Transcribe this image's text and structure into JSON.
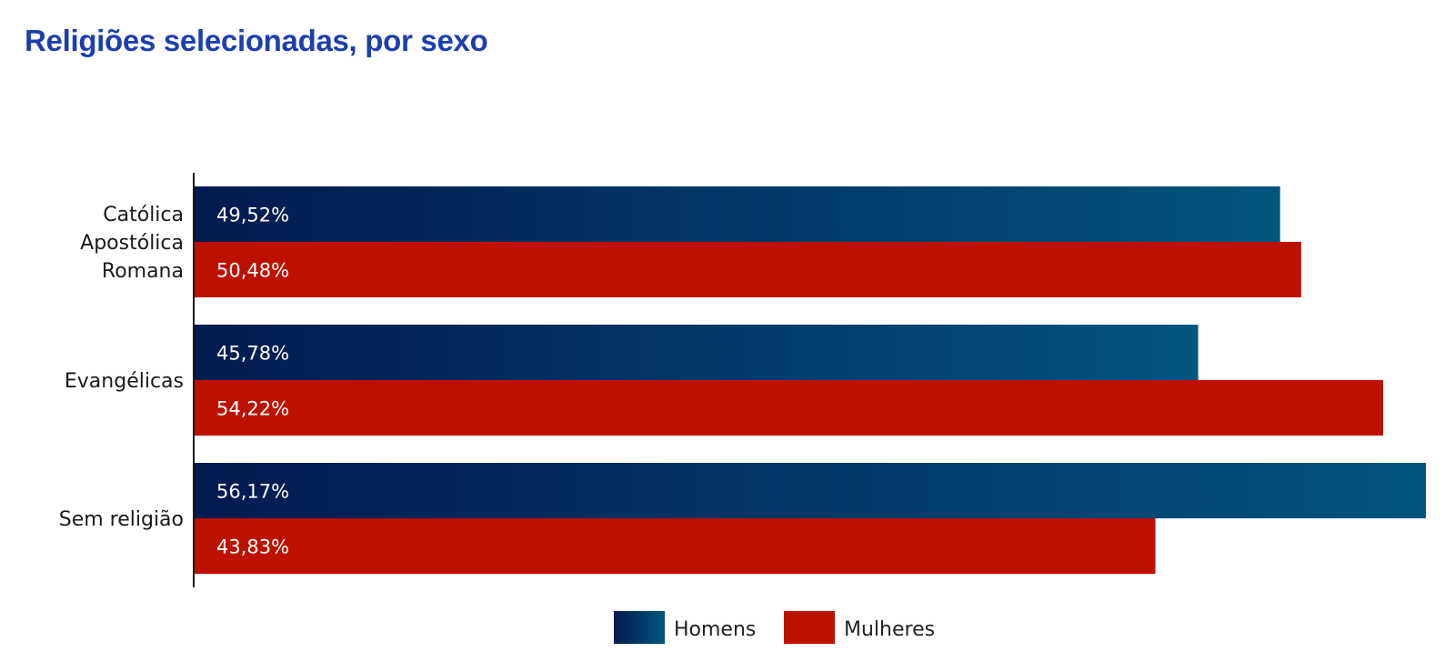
{
  "title": "Religiões selecionadas, por sexo",
  "colors": {
    "title": "#1d3fae",
    "homens_start": "#031a4f",
    "homens_end": "#03557f",
    "mulheres": "#bd1100",
    "axis": "#1a1a1a"
  },
  "chart_data": {
    "type": "bar",
    "orientation": "horizontal",
    "title": "Religiões selecionadas, por sexo",
    "categories": [
      [
        "Católica",
        "Apostólica",
        "Romana"
      ],
      [
        "Evangélicas"
      ],
      [
        "Sem religião"
      ]
    ],
    "series": [
      {
        "name": "Homens",
        "values": [
          49.52,
          45.78,
          56.17
        ],
        "labels": [
          "49,52%",
          "45,78%",
          "56,17%"
        ]
      },
      {
        "name": "Mulheres",
        "values": [
          50.48,
          54.22,
          43.83
        ],
        "labels": [
          "50,48%",
          "54,22%",
          "43,83%"
        ]
      }
    ],
    "xlim": [
      0,
      56.17
    ],
    "grid": false,
    "legend": "bottom-center",
    "value_labels": "inside-left"
  }
}
